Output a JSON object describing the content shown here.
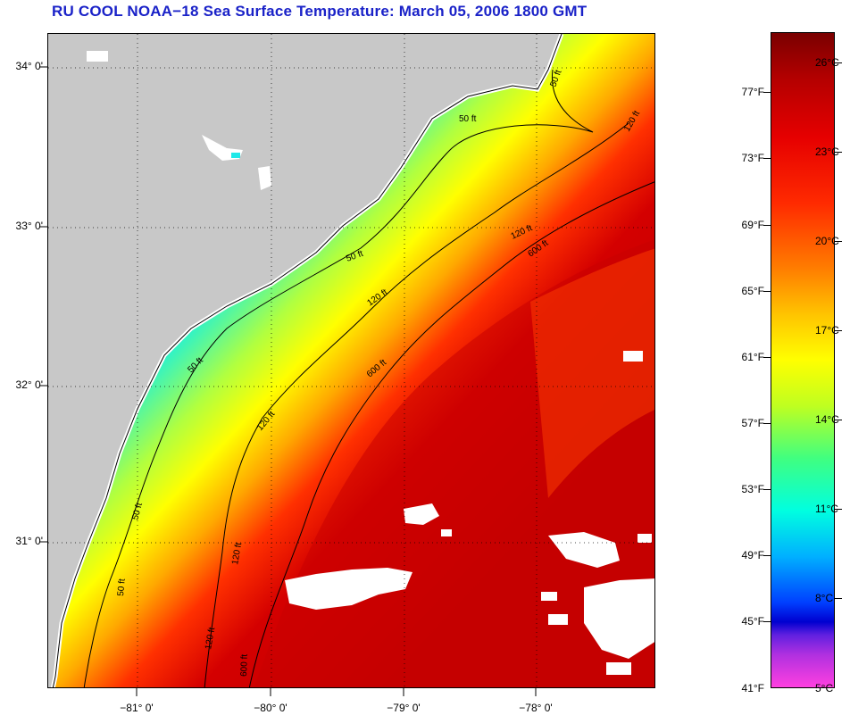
{
  "title": "RU COOL  NOAA−18  Sea Surface Temperature:  March 05, 2006 1800 GMT",
  "latitude_labels": [
    "34° 0'",
    "33° 0'",
    "32° 0'",
    "31° 0'"
  ],
  "longitude_labels": [
    "−81° 0'",
    "−80° 0'",
    "−79° 0'",
    "−78° 0'"
  ],
  "contour_labels": [
    "50 ft",
    "120 ft",
    "600 ft"
  ],
  "colorbar": {
    "fahrenheit_labels": [
      "77°F",
      "73°F",
      "69°F",
      "65°F",
      "61°F",
      "57°F",
      "53°F",
      "49°F",
      "45°F",
      "41°F"
    ],
    "celsius_labels": [
      "26°C",
      "23°C",
      "20°C",
      "17°C",
      "14°C",
      "11°C",
      "8°C",
      "5°C"
    ]
  },
  "colors": {
    "title": "#1a22c8",
    "land": "#c8c8c8",
    "cloud": "#ffffff",
    "cold": "#00e0ff",
    "warm": "#c80000"
  }
}
